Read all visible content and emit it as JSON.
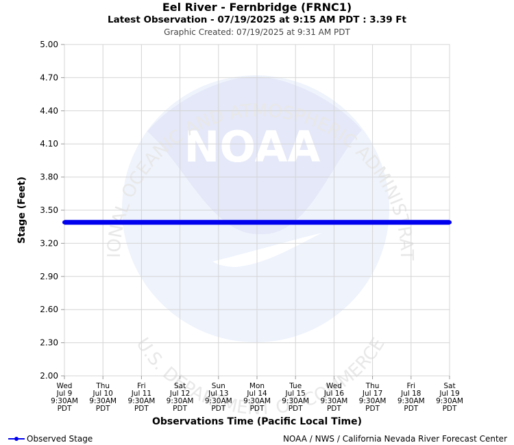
{
  "title": "Eel River - Fernbridge (FRNC1)",
  "subtitle": "Latest Observation - 07/19/2025 at 9:15 AM PDT : 3.39 Ft",
  "created": "Graphic Created: 07/19/2025 at 9:31 AM PDT",
  "credit": "NOAA / NWS / California Nevada River Forecast Center",
  "watermark": {
    "logo_text": "NOAA",
    "ring_top": "NATIONAL OCEANIC AND ATMOSPHERIC ADMINISTRATION",
    "ring_bottom": "U.S. DEPARTMENT OF COMMERCE"
  },
  "colors": {
    "series": "#0000ee",
    "grid": "#d4d4d4",
    "watermark": "#e8ecfa"
  },
  "chart_data": {
    "type": "line",
    "xlabel": "Observations Time (Pacific Local Time)",
    "ylabel": "Stage (Feet)",
    "ylim": [
      2.0,
      5.0
    ],
    "yticks": [
      "2.00",
      "2.30",
      "2.60",
      "2.90",
      "3.20",
      "3.50",
      "3.80",
      "4.10",
      "4.40",
      "4.70",
      "5.00"
    ],
    "xticks": [
      [
        "Wed",
        "Jul 9",
        "9:30AM",
        "PDT"
      ],
      [
        "Thu",
        "Jul 10",
        "9:30AM",
        "PDT"
      ],
      [
        "Fri",
        "Jul 11",
        "9:30AM",
        "PDT"
      ],
      [
        "Sat",
        "Jul 12",
        "9:30AM",
        "PDT"
      ],
      [
        "Sun",
        "Jul 13",
        "9:30AM",
        "PDT"
      ],
      [
        "Mon",
        "Jul 14",
        "9:30AM",
        "PDT"
      ],
      [
        "Tue",
        "Jul 15",
        "9:30AM",
        "PDT"
      ],
      [
        "Wed",
        "Jul 16",
        "9:30AM",
        "PDT"
      ],
      [
        "Thu",
        "Jul 17",
        "9:30AM",
        "PDT"
      ],
      [
        "Fri",
        "Jul 18",
        "9:30AM",
        "PDT"
      ],
      [
        "Sat",
        "Jul 19",
        "9:30AM",
        "PDT"
      ]
    ],
    "grid": true,
    "legend_position": "bottom-left",
    "series": [
      {
        "name": "Observed Stage",
        "marker": "circle",
        "x": [
          "Jul 9",
          "Jul 10",
          "Jul 11",
          "Jul 12",
          "Jul 13",
          "Jul 14",
          "Jul 15",
          "Jul 16",
          "Jul 17",
          "Jul 18",
          "Jul 19"
        ],
        "y": [
          3.39,
          3.39,
          3.39,
          3.39,
          3.39,
          3.39,
          3.39,
          3.39,
          3.39,
          3.39,
          3.39
        ]
      }
    ]
  }
}
